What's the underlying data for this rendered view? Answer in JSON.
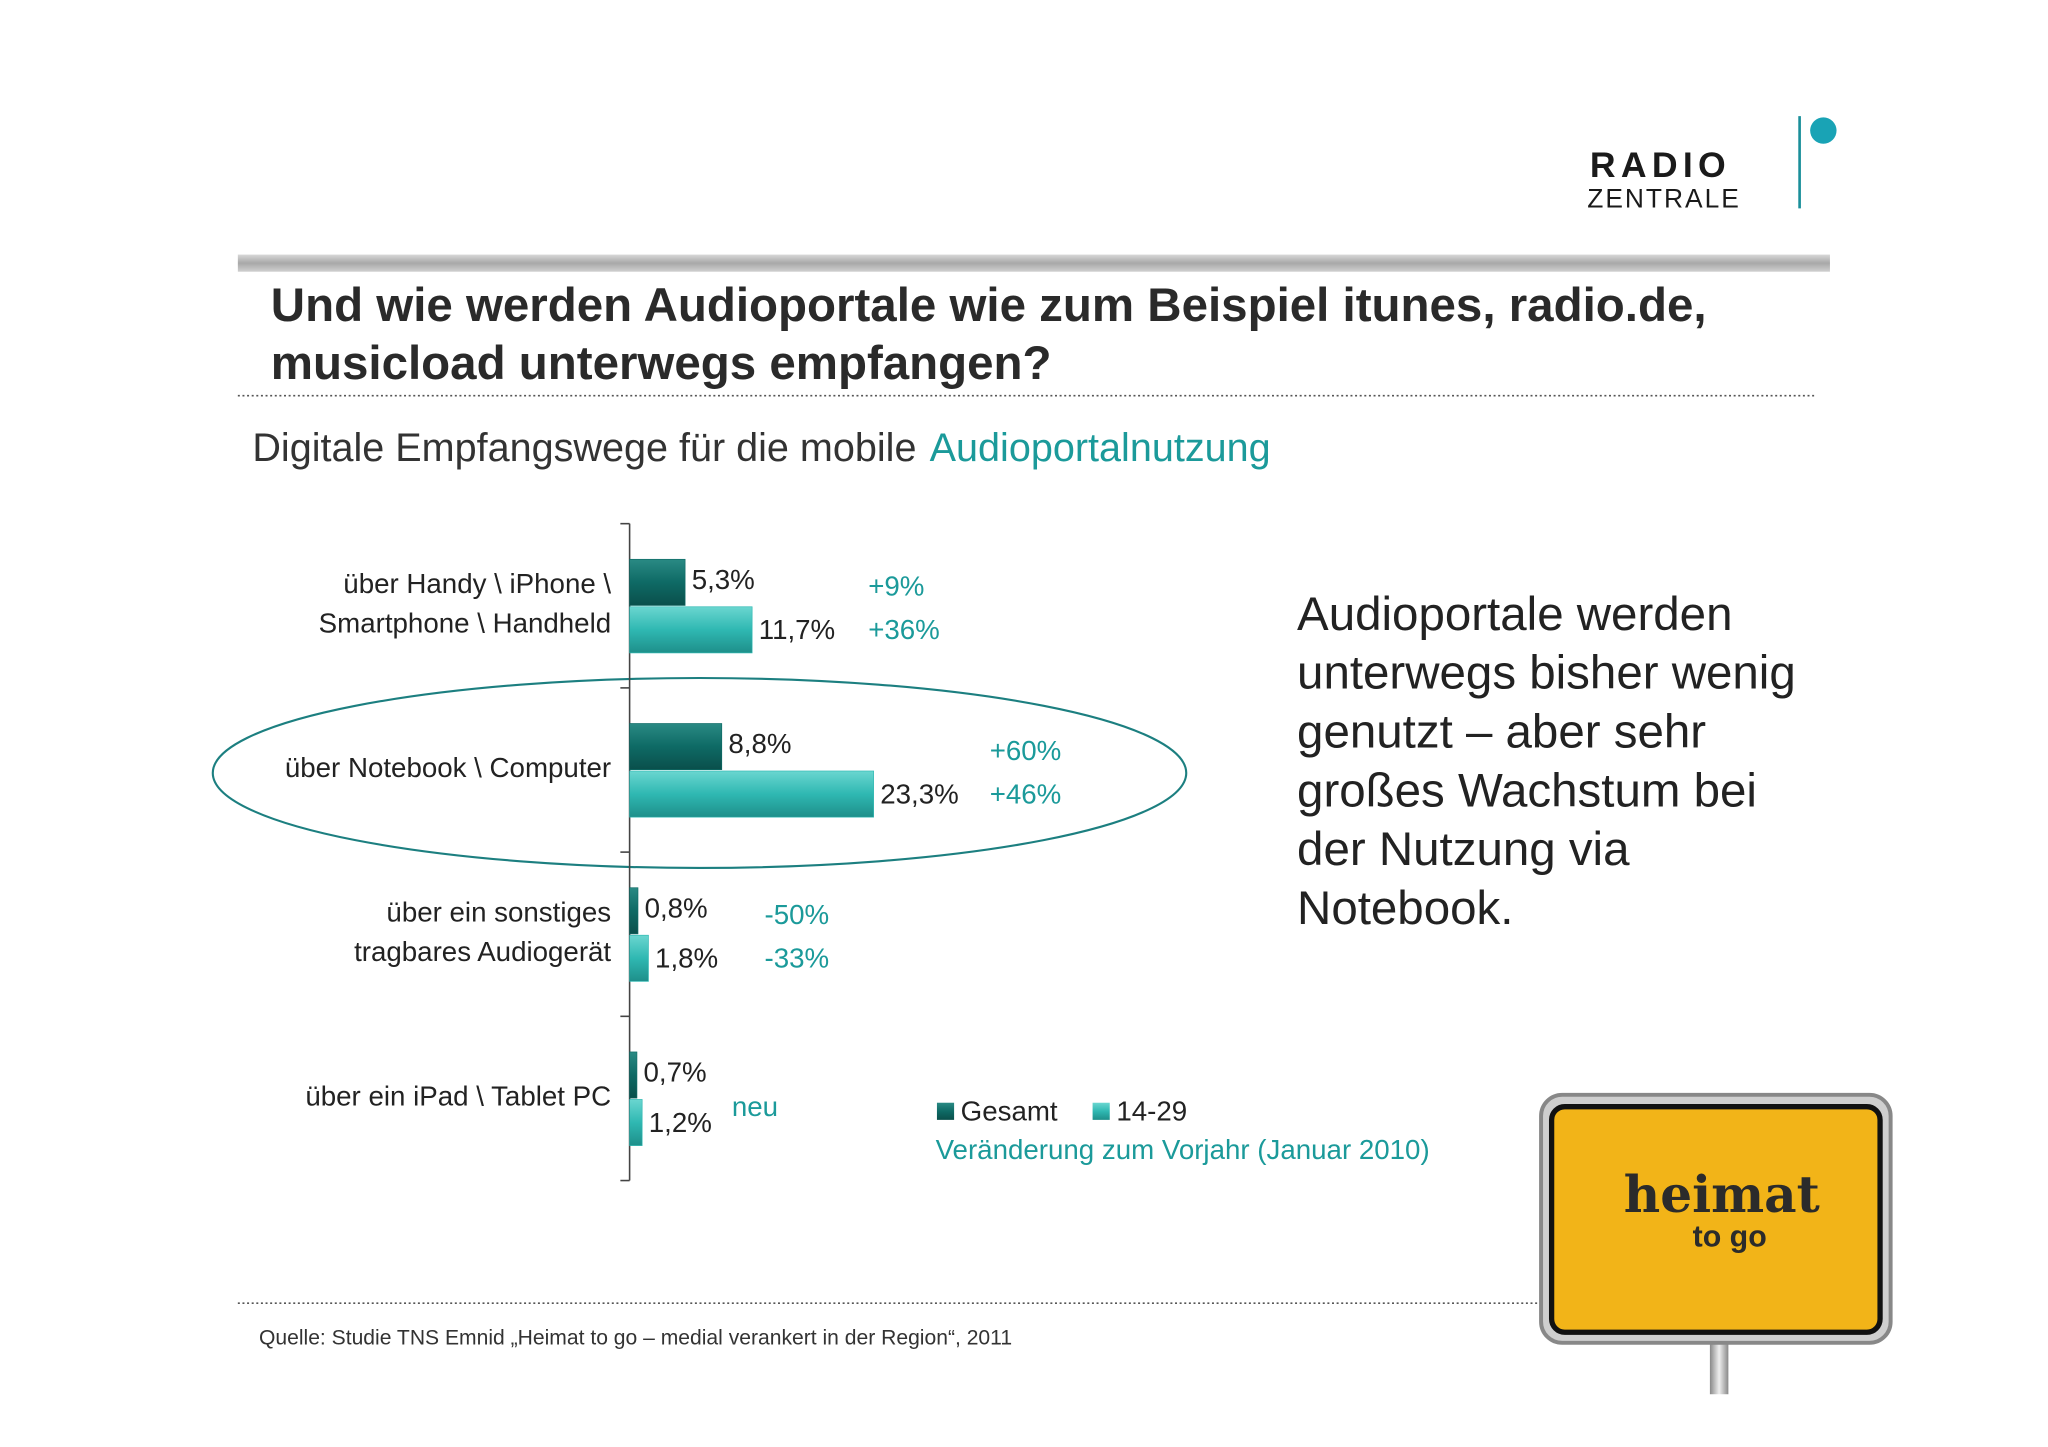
{
  "logo": {
    "line1": "RADIO",
    "line2": "ZENTRALE"
  },
  "chart_data": {
    "type": "hbar",
    "title": [
      "Und wie werden Audioportale wie zum Beispiel itunes, radio.de,",
      "musicload unterwegs empfangen?"
    ],
    "subtitle": "Digitale Empfangswege für die mobile",
    "subtitle_highlight": "Audioportalnutzung",
    "categories": [
      [
        "über Handy \\ iPhone \\",
        "Smartphone \\ Handheld"
      ],
      [
        "über Notebook \\ Computer"
      ],
      [
        "über ein sonstiges",
        "tragbares Audiogerät"
      ],
      [
        "über ein iPad \\ Tablet PC"
      ]
    ],
    "series": [
      {
        "name": "Gesamt",
        "color": "#0e6a65",
        "values": [
          5.3,
          8.8,
          0.8,
          0.7
        ],
        "value_labels": [
          "5,3%",
          "8,8%",
          "0,8%",
          "0,7%"
        ],
        "change_labels": [
          "+9%",
          "+60%",
          "-50%",
          null
        ]
      },
      {
        "name": "14-29",
        "color": "#2fb8b2",
        "values": [
          11.7,
          23.3,
          1.8,
          1.2
        ],
        "value_labels": [
          "11,7%",
          "23,3%",
          "1,8%",
          "1,2%"
        ],
        "change_labels": [
          "+36%",
          "+46%",
          "-33%",
          "neu"
        ]
      }
    ],
    "legend_note": "Veränderung zum Vorjahr (Januar 2010)"
  },
  "side_text": [
    "Audioportale werden",
    "unterwegs bisher wenig",
    "genutzt – aber sehr",
    "großes Wachstum bei",
    "der Nutzung via",
    "Notebook."
  ],
  "source": "Quelle: Studie TNS Emnid „Heimat to go  – medial verankert in der Region“, 2011",
  "sign": {
    "line1": "heimat",
    "line2": "to go"
  }
}
